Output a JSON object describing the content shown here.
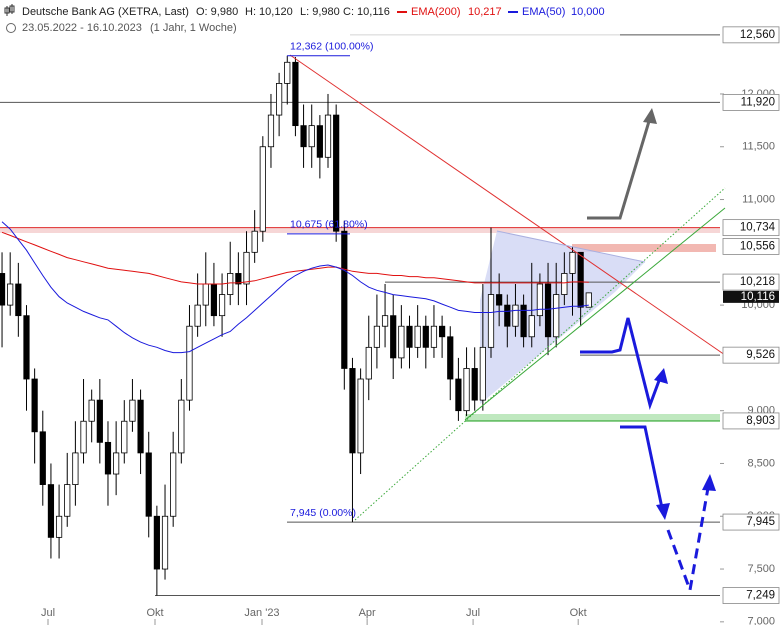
{
  "chart_data": {
    "type": "candlestick",
    "header": {
      "name": "Deutsche Bank AG (XETRA, Last)",
      "open": "O: 9,980",
      "high": "H: 10,120",
      "low": "L: 9,980",
      "close": "C: 10,116",
      "range": "23.05.2022 - 16.10.2023",
      "period": "(1 Jahr, 1 Woche)"
    },
    "xlim": [
      -0.25,
      88.1
    ],
    "ylim": [
      6.97,
      12.89
    ],
    "xticks": [
      {
        "value": 5.64,
        "label": "Jul"
      },
      {
        "value": 18.77,
        "label": "Okt"
      },
      {
        "value": 31.9,
        "label": "Jan '23"
      },
      {
        "value": 44.8,
        "label": "Apr"
      },
      {
        "value": 57.8,
        "label": "Jul"
      },
      {
        "value": 70.7,
        "label": "Okt"
      }
    ],
    "yticks": [
      {
        "value": 7,
        "label": "7,000"
      },
      {
        "value": 7.5,
        "label": "7,500"
      },
      {
        "value": 8,
        "label": "8,000"
      },
      {
        "value": 8.5,
        "label": "8,500"
      },
      {
        "value": 9,
        "label": "9,000"
      },
      {
        "value": 10,
        "label": "10,000"
      },
      {
        "value": 11,
        "label": "11,000"
      },
      {
        "value": 11.5,
        "label": "11,500"
      },
      {
        "value": 12,
        "label": "12,000"
      }
    ],
    "candles": {
      "open": [
        10.3,
        10.0,
        10.2,
        9.9,
        9.3,
        8.8,
        8.3,
        7.8,
        8.0,
        8.3,
        8.6,
        8.9,
        9.1,
        8.7,
        8.4,
        8.6,
        8.9,
        9.1,
        8.6,
        8.0,
        7.5,
        8.0,
        8.6,
        9.1,
        9.8,
        10.0,
        10.2,
        9.9,
        10.1,
        10.3,
        10.2,
        10.5,
        10.7,
        11.5,
        11.8,
        12.1,
        12.3,
        11.7,
        11.5,
        11.7,
        11.4,
        11.8,
        10.7,
        9.4,
        8.6,
        9.3,
        9.6,
        9.8,
        9.9,
        9.5,
        9.8,
        9.6,
        9.8,
        9.6,
        9.8,
        9.7,
        9.3,
        9.0,
        9.4,
        9.1,
        9.6,
        10.1,
        10.0,
        9.8,
        10.0,
        9.7,
        9.9,
        10.2,
        9.7,
        10.1,
        10.3,
        10.5,
        9.98
      ],
      "high": [
        10.5,
        10.5,
        10.4,
        10.0,
        9.4,
        9.0,
        8.5,
        8.3,
        8.6,
        8.9,
        9.3,
        9.2,
        9.3,
        8.9,
        8.9,
        9.1,
        9.3,
        9.2,
        8.8,
        8.1,
        8.3,
        8.8,
        9.3,
        10.0,
        10.3,
        10.5,
        10.4,
        10.3,
        10.6,
        10.5,
        10.7,
        10.9,
        11.6,
        12.0,
        12.2,
        12.362,
        12.35,
        11.9,
        11.9,
        11.8,
        12.0,
        11.9,
        10.8,
        9.5,
        9.4,
        9.9,
        10.1,
        10.2,
        10.1,
        10.0,
        9.9,
        10.0,
        9.9,
        10.0,
        9.9,
        9.8,
        9.5,
        9.6,
        9.6,
        10.2,
        10.734,
        10.3,
        10.1,
        10.2,
        10.1,
        10.4,
        10.3,
        10.4,
        10.4,
        10.5,
        10.556,
        10.5,
        10.12
      ],
      "low": [
        9.6,
        9.9,
        9.7,
        9.0,
        8.5,
        8.1,
        7.6,
        7.6,
        7.9,
        8.1,
        8.5,
        8.7,
        8.5,
        8.1,
        8.2,
        8.5,
        8.8,
        8.4,
        7.8,
        7.249,
        7.4,
        7.9,
        8.5,
        9.0,
        9.7,
        9.8,
        9.8,
        9.7,
        10.0,
        10.0,
        10.0,
        10.4,
        10.6,
        11.3,
        11.6,
        11.9,
        11.6,
        11.3,
        11.3,
        11.2,
        11.3,
        10.6,
        9.2,
        7.945,
        8.4,
        9.1,
        9.4,
        9.6,
        9.3,
        9.4,
        9.4,
        9.5,
        9.4,
        9.5,
        9.5,
        9.1,
        8.903,
        8.95,
        9.0,
        9.0,
        9.5,
        9.8,
        9.6,
        9.7,
        9.6,
        9.6,
        9.8,
        9.526,
        9.6,
        10.0,
        9.9,
        9.8,
        9.98
      ],
      "close": [
        10.0,
        10.2,
        9.9,
        9.3,
        8.8,
        8.3,
        7.8,
        8.0,
        8.3,
        8.6,
        8.9,
        9.1,
        8.7,
        8.4,
        8.6,
        8.9,
        9.1,
        8.6,
        8.0,
        7.5,
        8.0,
        8.6,
        9.1,
        9.8,
        10.0,
        10.2,
        9.9,
        10.1,
        10.3,
        10.2,
        10.5,
        10.7,
        11.5,
        11.8,
        12.1,
        12.3,
        11.7,
        11.5,
        11.7,
        11.4,
        11.8,
        10.7,
        9.4,
        8.6,
        9.3,
        9.6,
        9.8,
        9.9,
        9.5,
        9.8,
        9.6,
        9.8,
        9.6,
        9.8,
        9.7,
        9.3,
        9.0,
        9.4,
        9.1,
        9.6,
        10.1,
        10.0,
        9.8,
        10.0,
        9.7,
        9.9,
        10.2,
        9.7,
        10.1,
        10.3,
        10.5,
        9.98,
        10.116
      ]
    },
    "series": [
      {
        "name": "EMA(200)",
        "color": "#e01010",
        "last_label": "10,217",
        "values": [
          10.69,
          10.66,
          10.63,
          10.6,
          10.57,
          10.54,
          10.51,
          10.48,
          10.45,
          10.43,
          10.41,
          10.39,
          10.37,
          10.35,
          10.34,
          10.33,
          10.32,
          10.31,
          10.3,
          10.28,
          10.26,
          10.24,
          10.22,
          10.21,
          10.2,
          10.2,
          10.2,
          10.2,
          10.21,
          10.21,
          10.22,
          10.23,
          10.25,
          10.27,
          10.29,
          10.31,
          10.32,
          10.33,
          10.34,
          10.35,
          10.36,
          10.36,
          10.34,
          10.32,
          10.31,
          10.3,
          10.3,
          10.29,
          10.28,
          10.28,
          10.27,
          10.27,
          10.26,
          10.26,
          10.25,
          10.24,
          10.23,
          10.22,
          10.21,
          10.21,
          10.21,
          10.21,
          10.21,
          10.21,
          10.21,
          10.21,
          10.21,
          10.21,
          10.21,
          10.21,
          10.22,
          10.22,
          10.217
        ]
      },
      {
        "name": "EMA(50)",
        "color": "#1a1adc",
        "last_label": "10,000",
        "values": [
          10.79,
          10.72,
          10.62,
          10.52,
          10.4,
          10.28,
          10.17,
          10.08,
          10.02,
          9.98,
          9.94,
          9.91,
          9.88,
          9.86,
          9.8,
          9.74,
          9.69,
          9.65,
          9.62,
          9.6,
          9.57,
          9.55,
          9.55,
          9.56,
          9.6,
          9.64,
          9.68,
          9.72,
          9.75,
          9.82,
          9.88,
          9.95,
          10.02,
          10.09,
          10.16,
          10.23,
          10.28,
          10.32,
          10.35,
          10.37,
          10.38,
          10.36,
          10.33,
          10.28,
          10.22,
          10.17,
          10.14,
          10.12,
          10.1,
          10.09,
          10.08,
          10.07,
          10.06,
          10.04,
          10.01,
          9.98,
          9.95,
          9.94,
          9.93,
          9.93,
          9.93,
          9.94,
          9.94,
          9.95,
          9.95,
          9.95,
          9.96,
          9.96,
          9.97,
          9.98,
          9.99,
          9.99,
          10.0
        ]
      }
    ],
    "levels": [
      {
        "value": 12.56,
        "label": "12,560"
      },
      {
        "value": 11.92,
        "label": "11,920"
      },
      {
        "value": 10.734,
        "label": "10,734"
      },
      {
        "value": 10.556,
        "label": "10,556"
      },
      {
        "value": 10.218,
        "label": "10,218"
      },
      {
        "value": 9.526,
        "label": "9,526"
      },
      {
        "value": 8.903,
        "label": "8,903"
      },
      {
        "value": 7.945,
        "label": "7,945"
      },
      {
        "value": 7.249,
        "label": "7,249"
      }
    ],
    "last_price": {
      "value": 10.116,
      "label": "10,116"
    },
    "annotations": [
      {
        "value": 12.362,
        "label": "12,362 (100.00%)"
      },
      {
        "value": 10.675,
        "label": "10,675 (61.80%)"
      },
      {
        "value": 7.945,
        "label": "7,945 (0.00%)"
      }
    ]
  }
}
